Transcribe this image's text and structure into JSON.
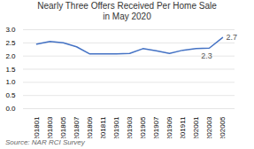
{
  "chart_data": {
    "type": "line",
    "title": "Nearly Three Offers Received Per Home Sale\nin May 2020",
    "source": "Source: NAR RCI Survey",
    "categories": [
      "201801",
      "201803",
      "201805",
      "201807",
      "201809",
      "201811",
      "201901",
      "201903",
      "201905",
      "201907",
      "201909",
      "201911",
      "202001",
      "202003",
      "202005"
    ],
    "values": [
      2.45,
      2.55,
      2.5,
      2.35,
      2.08,
      2.08,
      2.08,
      2.1,
      2.28,
      2.2,
      2.1,
      2.22,
      2.28,
      2.3,
      2.7
    ],
    "color": "#4472c4",
    "ylim": [
      0.0,
      3.0
    ],
    "yticks": [
      {
        "value": 0,
        "label": "0.0"
      },
      0.5,
      {
        "value": 1,
        "label": "1.0"
      },
      1.5,
      {
        "value": 2,
        "label": "2.0"
      },
      2.5,
      {
        "value": 3,
        "label": "3.0"
      }
    ],
    "grid": true,
    "annotations": [
      {
        "x": "202003",
        "y": 2.3,
        "text": "2.3"
      },
      {
        "x": "202005",
        "y": 2.7,
        "text": "2.7"
      }
    ]
  }
}
